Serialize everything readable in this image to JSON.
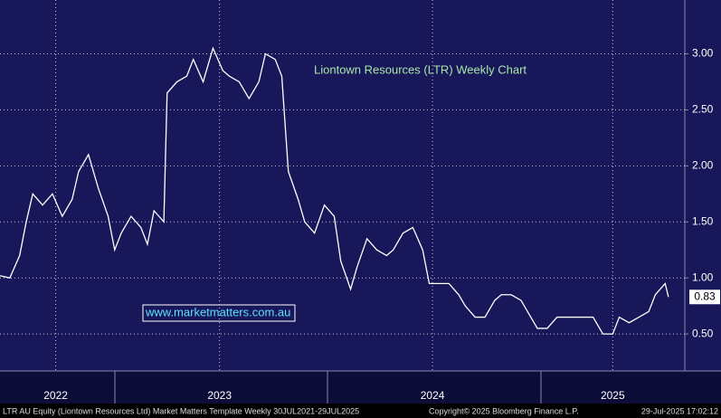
{
  "chart_data": {
    "type": "line",
    "title": "Liontown Resources (LTR) Weekly Chart",
    "watermark": "www.marketmatters.com.au",
    "footer_left": "LTR AU Equity (Liontown Resources Ltd) Market Matters Template  Weekly 30JUL2021-29JUL2025",
    "footer_mid": "Copyright© 2025 Bloomberg Finance L.P.",
    "footer_right": "29-Jul-2025 17:02:12",
    "x": [
      0,
      3,
      6,
      8,
      10,
      13,
      16,
      19,
      22,
      24,
      27,
      30,
      33,
      35,
      37,
      40,
      43,
      45,
      47,
      50,
      51,
      54,
      57,
      59,
      62,
      65,
      68,
      70,
      73,
      76,
      79,
      81,
      84,
      86,
      88,
      91,
      93,
      96,
      99,
      102,
      104,
      107,
      109,
      112,
      115,
      118,
      120,
      123,
      126,
      129,
      131,
      134,
      137,
      140,
      142,
      145,
      148,
      151,
      153,
      156,
      159,
      162,
      164,
      167,
      170,
      173,
      176,
      178,
      181,
      184,
      187,
      189,
      192,
      195,
      198,
      200,
      203,
      204
    ],
    "series": [
      {
        "name": "LTR",
        "color": "#ffffff",
        "values": [
          1.02,
          1.0,
          1.2,
          1.5,
          1.75,
          1.65,
          1.75,
          1.55,
          1.7,
          1.95,
          2.1,
          1.8,
          1.55,
          1.25,
          1.4,
          1.55,
          1.45,
          1.3,
          1.6,
          1.5,
          2.65,
          2.75,
          2.8,
          2.95,
          2.75,
          3.05,
          2.85,
          2.8,
          2.75,
          2.6,
          2.75,
          3.0,
          2.95,
          2.8,
          1.95,
          1.7,
          1.5,
          1.4,
          1.65,
          1.55,
          1.15,
          0.9,
          1.1,
          1.35,
          1.25,
          1.2,
          1.25,
          1.4,
          1.45,
          1.25,
          0.95,
          0.95,
          0.95,
          0.85,
          0.75,
          0.65,
          0.65,
          0.8,
          0.85,
          0.85,
          0.8,
          0.65,
          0.55,
          0.55,
          0.65,
          0.65,
          0.65,
          0.65,
          0.65,
          0.5,
          0.5,
          0.65,
          0.6,
          0.65,
          0.7,
          0.85,
          0.95,
          0.83
        ]
      }
    ],
    "last_price": 0.83,
    "xlim": [
      0,
      209
    ],
    "xticks": [
      {
        "value": 17,
        "label": "2022"
      },
      {
        "value": 67,
        "label": "2023"
      },
      {
        "value": 132,
        "label": "2024"
      },
      {
        "value": 187,
        "label": "2025"
      }
    ],
    "ylim": [
      0.17,
      3.48
    ],
    "yticks": [
      {
        "value": 0.5,
        "label": "0.50"
      },
      {
        "value": 1,
        "label": "1.00"
      },
      {
        "value": 1.5,
        "label": "1.50"
      },
      {
        "value": 2,
        "label": "2.00"
      },
      {
        "value": 2.5,
        "label": "2.50"
      },
      {
        "value": 3,
        "label": "3.00"
      }
    ],
    "grid": true
  }
}
